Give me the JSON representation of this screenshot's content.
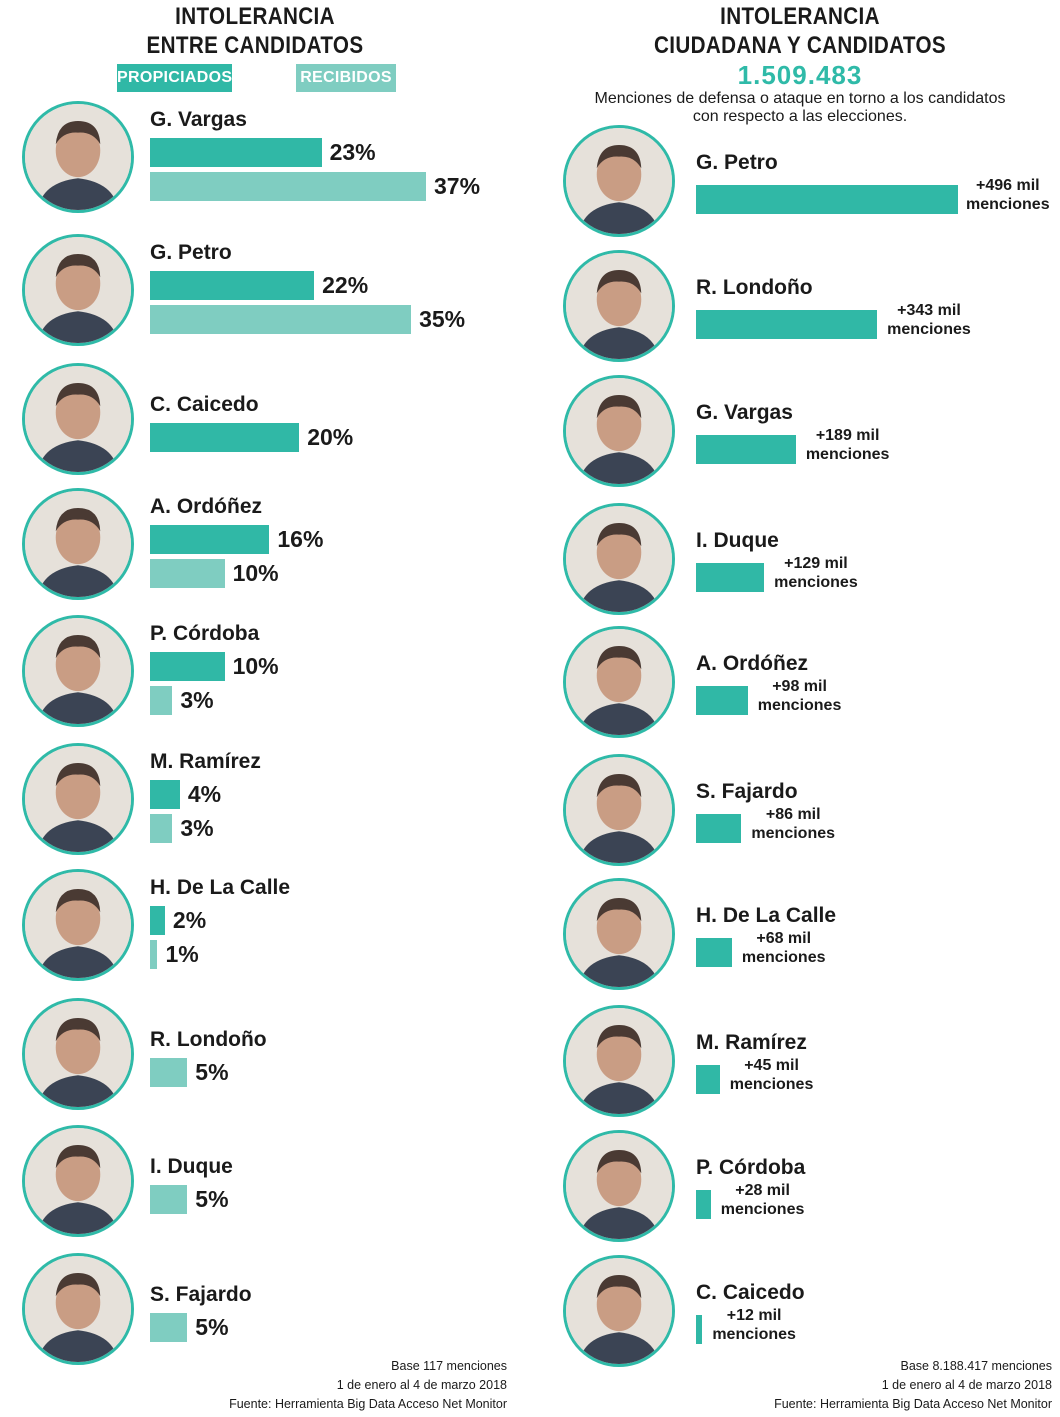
{
  "colors": {
    "propiciados": "#30b8a6",
    "recibidos": "#7fcdc1",
    "avatar_border": "#2fbaa8",
    "total_text": "#2fbaa8"
  },
  "left_panel": {
    "title_line1": "INTOLERANCIA",
    "title_line2": "ENTRE CANDIDATOS",
    "legend_propiciados": "PROPICIADOS",
    "legend_recibidos": "RECIBIDOS",
    "footnote_line1": "Base 117 menciones",
    "footnote_line2": "1 de enero al 4 de marzo 2018",
    "footnote_line3": "Fuente: Herramienta Big Data Acceso Net Monitor"
  },
  "right_panel": {
    "title_line1": "INTOLERANCIA",
    "title_line2": "CIUDADANA Y CANDIDATOS",
    "total": "1.509.483",
    "subtitle_line1": "Menciones de defensa o ataque en torno a los candidatos",
    "subtitle_line2": "con respecto a las elecciones.",
    "footnote_line1": "Base 8.188.417 menciones",
    "footnote_line2": "1 de enero al 4 de marzo 2018",
    "footnote_line3": "Fuente: Herramienta Big Data Acceso Net Monitor"
  },
  "chart_data": [
    {
      "type": "bar",
      "orientation": "horizontal",
      "title": "INTOLERANCIA ENTRE CANDIDATOS",
      "unit": "%",
      "categories": [
        "G. Vargas",
        "G. Petro",
        "C. Caicedo",
        "A. Ordóñez",
        "P. Córdoba",
        "M. Ramírez",
        "H. De La Calle",
        "R. Londoño",
        "I. Duque",
        "S. Fajardo"
      ],
      "series": [
        {
          "name": "PROPICIADOS",
          "values": [
            23,
            22,
            20,
            16,
            10,
            4,
            2,
            null,
            null,
            null
          ],
          "labels": [
            "23%",
            "22%",
            "20%",
            "16%",
            "10%",
            "4%",
            "2%",
            null,
            null,
            null
          ]
        },
        {
          "name": "RECIBIDOS",
          "values": [
            37,
            35,
            null,
            10,
            3,
            3,
            1,
            5,
            5,
            5
          ],
          "labels": [
            "37%",
            "35%",
            null,
            "10%",
            "3%",
            "3%",
            "1%",
            "5%",
            "5%",
            "5%"
          ]
        }
      ],
      "legend": "top"
    },
    {
      "type": "bar",
      "orientation": "horizontal",
      "title": "INTOLERANCIA CIUDADANA Y CANDIDATOS",
      "categories": [
        "G. Petro",
        "R. Londoño",
        "G. Vargas",
        "I. Duque",
        "A. Ordóñez",
        "S. Fajardo",
        "H. De La Calle",
        "M. Ramírez",
        "P. Córdoba",
        "C. Caicedo"
      ],
      "series": [
        {
          "values": [
            496000,
            343000,
            189000,
            129000,
            98000,
            86000,
            68000,
            45000,
            28000,
            12000
          ],
          "labels": [
            "+496 mil",
            "+343 mil",
            "+189 mil",
            "+129 mil",
            "+98 mil",
            "+86 mil",
            "+68 mil",
            "+45 mil",
            "+28 mil",
            "+12 mil"
          ],
          "sublabel": "menciones"
        }
      ]
    }
  ]
}
